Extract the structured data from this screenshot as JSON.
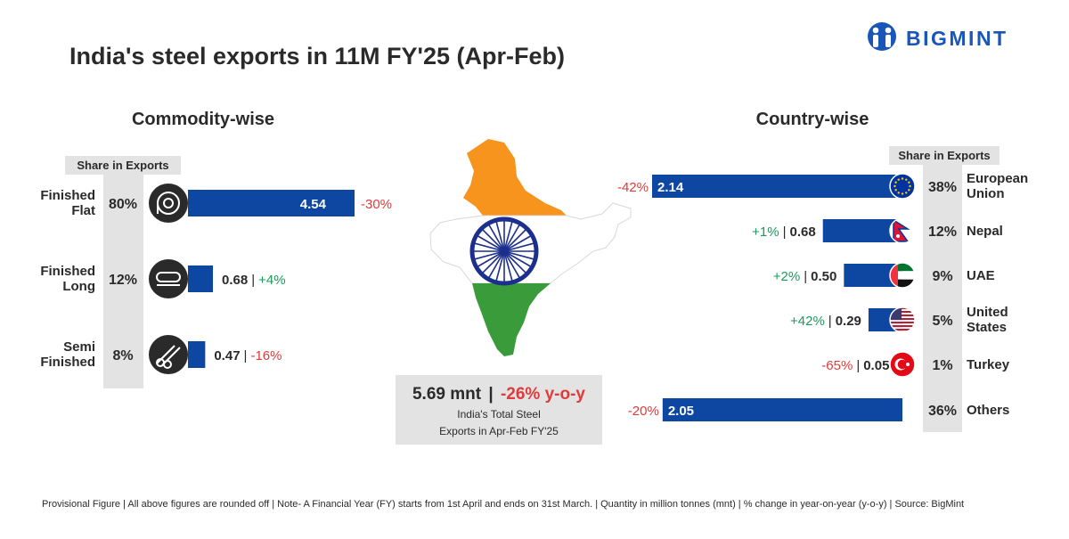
{
  "title": "India's steel exports in 11M FY'25 (Apr-Feb)",
  "brand": {
    "name": "BIGMINT",
    "color": "#1a56b8"
  },
  "colors": {
    "bar": "#0d47a1",
    "negative": "#e03a3a",
    "positive": "#1a9a5a",
    "panel": "#e3e3e3",
    "dark": "#2a2a2a"
  },
  "commodity": {
    "heading": "Commodity-wise",
    "share_header": "Share in Exports",
    "sep": "|",
    "chart_data": {
      "type": "bar",
      "title": "Commodity-wise",
      "unit": "mnt",
      "categories": [
        "Finished Flat",
        "Finished Long",
        "Semi Finished"
      ],
      "label_lines": [
        [
          "Finished",
          "Flat"
        ],
        [
          "Finished",
          "Long"
        ],
        [
          "Semi",
          "Finished"
        ]
      ],
      "shares": [
        "80%",
        "12%",
        "8%"
      ],
      "values": [
        4.54,
        0.68,
        0.47
      ],
      "value_labels": [
        "4.54",
        "0.68",
        "0.47"
      ],
      "changes": [
        "-30%",
        "+4%",
        "-16%"
      ],
      "icons": [
        "coil-icon",
        "long-products-icon",
        "billets-icon"
      ]
    }
  },
  "country": {
    "heading": "Country-wise",
    "share_header": "Share in Exports",
    "sep": "|",
    "chart_data": {
      "type": "bar",
      "title": "Country-wise",
      "unit": "mnt",
      "categories": [
        "European Union",
        "Nepal",
        "UAE",
        "United States",
        "Turkey",
        "Others"
      ],
      "label_lines": [
        [
          "European",
          "Union"
        ],
        [
          "Nepal"
        ],
        [
          "UAE"
        ],
        [
          "United",
          "States"
        ],
        [
          "Turkey"
        ],
        [
          "Others"
        ]
      ],
      "shares": [
        "38%",
        "12%",
        "9%",
        "5%",
        "1%",
        "36%"
      ],
      "values": [
        2.14,
        0.68,
        0.5,
        0.29,
        0.05,
        2.05
      ],
      "value_labels": [
        "2.14",
        "0.68",
        "0.50",
        "0.29",
        "0.05",
        "2.05"
      ],
      "changes": [
        "-42%",
        "+1%",
        "+2%",
        "+42%",
        "-65%",
        "-20%"
      ],
      "flags": [
        "eu-flag-icon",
        "nepal-flag-icon",
        "uae-flag-icon",
        "us-flag-icon",
        "turkey-flag-icon",
        ""
      ]
    }
  },
  "total": {
    "value": "5.69 mnt",
    "sep": "|",
    "change": "-26% y-o-y",
    "line1": "India's Total Steel",
    "line2": "Exports in Apr-Feb FY'25"
  },
  "footer": "Provisional Figure | All above figures are rounded off | Note- A Financial Year (FY) starts from 1st April and ends on 31st March. | Quantity in million tonnes (mnt) | % change in year-on-year (y-o-y) | Source: BigMint"
}
